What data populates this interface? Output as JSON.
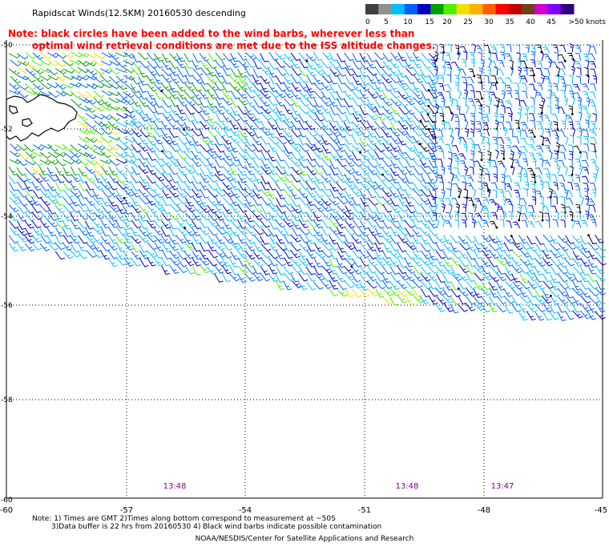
{
  "header": {
    "title": "Rapidscat Winds(12.5KM) 20160530 descending",
    "note": [
      "Note: black circles have been added to the wind barbs, wherever less than",
      "optimal wind retrieval conditions are met due to the ISS altitude changes."
    ]
  },
  "legend": {
    "labels": [
      "0",
      "5",
      "10",
      "15",
      "20",
      "25",
      "30",
      "35",
      "40",
      "45",
      ">50 knots"
    ],
    "colors": [
      "#404040",
      "#909090",
      "#00c0ff",
      "#0060ff",
      "#0000c0",
      "#00a000",
      "#50f000",
      "#f0e000",
      "#ffb000",
      "#ff6000",
      "#ff0000",
      "#c00000",
      "#704020",
      "#d000d0",
      "#8000ff",
      "#300080"
    ]
  },
  "axes": {
    "lat_labels": [
      "-50",
      "-52",
      "-54",
      "-56",
      "-58",
      "-60"
    ],
    "lon_labels": [
      "-60",
      "-57",
      "-54",
      "-51",
      "-48",
      "-45"
    ]
  },
  "pass_times": [
    "13:48",
    "13:48",
    "13:47"
  ],
  "footer": {
    "note_line1": "Note: 1) Times are GMT 2)Times along bottom correspond to measurement at ~50S",
    "note_line2": "3)Data buffer is 22 hrs from 20160530 4) Black wind barbs indicate possible contamination",
    "credit": "NOAA/NESDIS/Center for Satellite Applications and Research"
  }
}
